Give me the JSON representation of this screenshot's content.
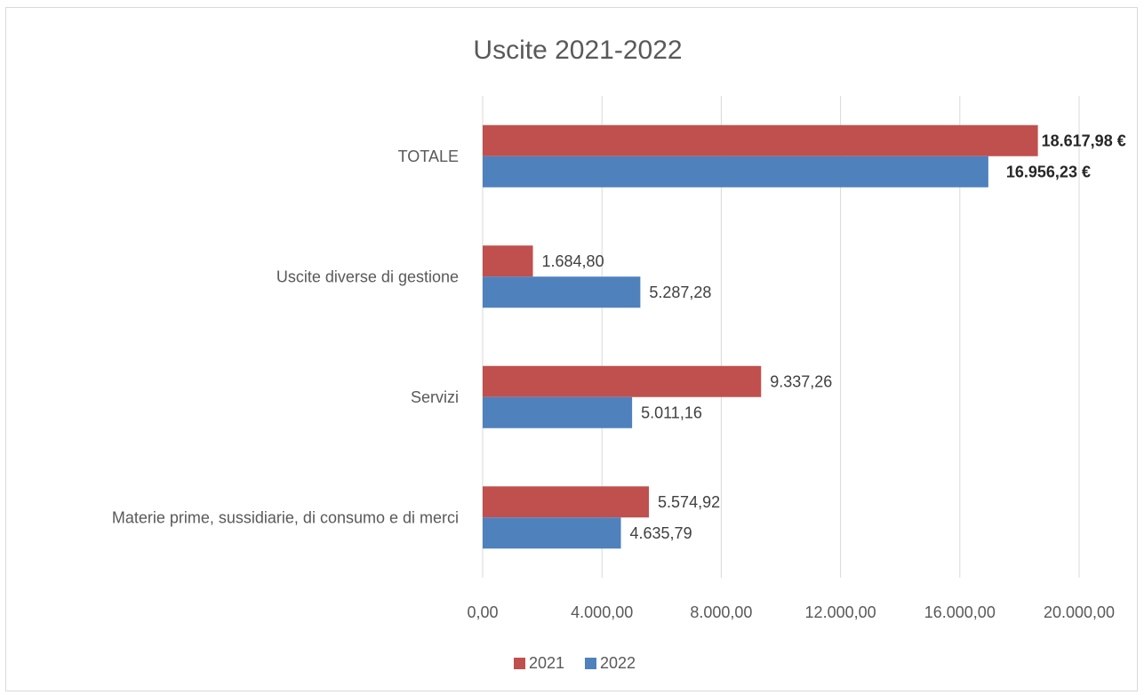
{
  "chart_data": {
    "type": "bar",
    "orientation": "horizontal",
    "title": "Uscite 2021-2022",
    "categories": [
      "Materie prime, sussidiarie, di consumo e di merci",
      "Servizi",
      "Uscite diverse di gestione",
      "TOTALE"
    ],
    "series": [
      {
        "name": "2021",
        "color": "#c0504d",
        "values": [
          5574.92,
          9337.26,
          1684.8,
          18617.98
        ],
        "labels": [
          "5.574,92",
          "9.337,26",
          "1.684,80",
          "18.617,98 €"
        ]
      },
      {
        "name": "2022",
        "color": "#4f81bd",
        "values": [
          4635.79,
          5011.16,
          5287.28,
          16956.23
        ],
        "labels": [
          "4.635,79",
          "5.011,16",
          "5.287,28",
          "16.956,23 €"
        ]
      }
    ],
    "xlim": [
      0,
      20000
    ],
    "xticks": [
      0,
      4000,
      8000,
      12000,
      16000,
      20000
    ],
    "xtick_labels": [
      "0,00",
      "4.000,00",
      "8.000,00",
      "12.000,00",
      "16.000,00",
      "20.000,00"
    ],
    "grid": true,
    "legend_position": "bottom",
    "bold_category": "TOTALE"
  }
}
